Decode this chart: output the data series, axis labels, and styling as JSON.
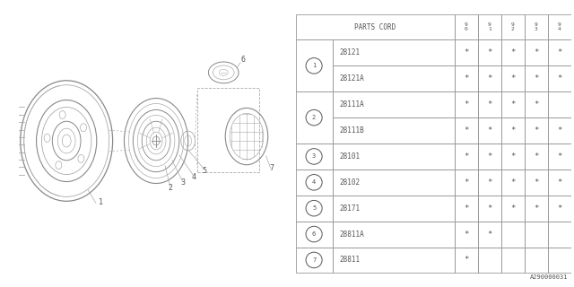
{
  "watermark": "A290000031",
  "table": {
    "header_col": "PARTS CORD",
    "year_cols": [
      "9\n0",
      "9\n1",
      "9\n2",
      "9\n3",
      "9\n4"
    ],
    "rows": [
      {
        "num": 1,
        "part": "28121",
        "marks": [
          true,
          true,
          true,
          true,
          true
        ],
        "span_start": true,
        "span": 2
      },
      {
        "num": null,
        "part": "28121A",
        "marks": [
          true,
          true,
          true,
          true,
          true
        ],
        "span_start": false,
        "span": 0
      },
      {
        "num": 2,
        "part": "28111A",
        "marks": [
          true,
          true,
          true,
          true,
          false
        ],
        "span_start": true,
        "span": 2
      },
      {
        "num": null,
        "part": "28111B",
        "marks": [
          true,
          true,
          true,
          true,
          true
        ],
        "span_start": false,
        "span": 0
      },
      {
        "num": 3,
        "part": "28101",
        "marks": [
          true,
          true,
          true,
          true,
          true
        ],
        "span_start": true,
        "span": 1
      },
      {
        "num": 4,
        "part": "28102",
        "marks": [
          true,
          true,
          true,
          true,
          true
        ],
        "span_start": true,
        "span": 1
      },
      {
        "num": 5,
        "part": "28171",
        "marks": [
          true,
          true,
          true,
          true,
          true
        ],
        "span_start": true,
        "span": 1
      },
      {
        "num": 6,
        "part": "28811A",
        "marks": [
          true,
          true,
          false,
          false,
          false
        ],
        "span_start": true,
        "span": 1
      },
      {
        "num": 7,
        "part": "28811",
        "marks": [
          true,
          false,
          false,
          false,
          false
        ],
        "span_start": true,
        "span": 1
      }
    ]
  },
  "bg_color": "#ffffff",
  "line_color": "#aaaaaa",
  "dark_line_color": "#888888",
  "text_color": "#555555",
  "table_line_color": "#999999"
}
